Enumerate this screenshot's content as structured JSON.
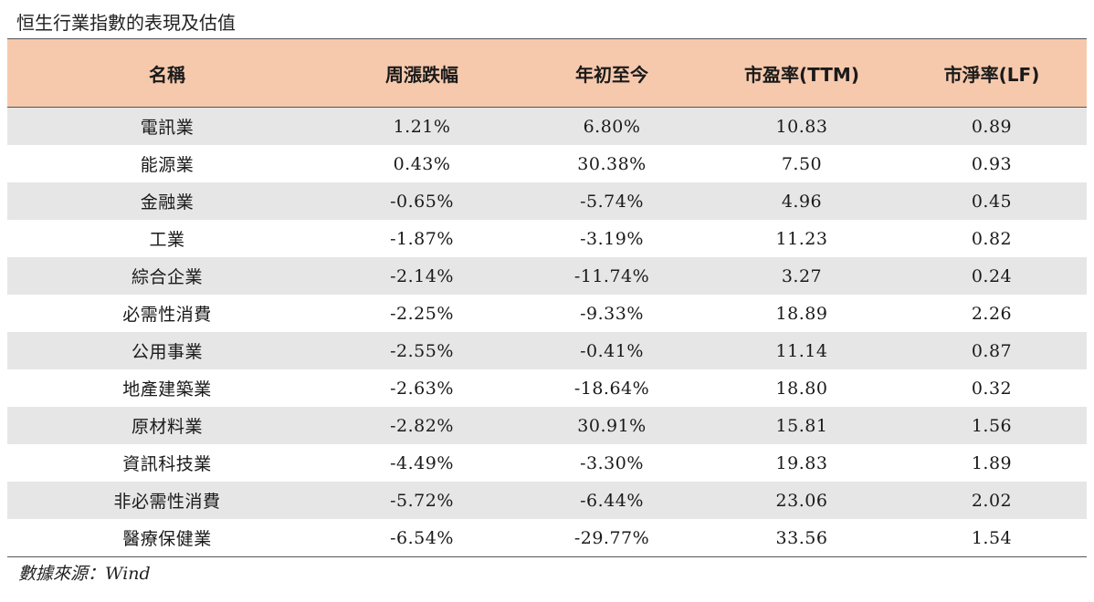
{
  "caption": "恒生行業指數的表現及估值",
  "table": {
    "headers": [
      "名稱",
      "周漲跌幅",
      "年初至今",
      "市盈率(TTM)",
      "市淨率(LF)"
    ],
    "rows": [
      [
        "電訊業",
        "1.21%",
        "6.80%",
        "10.83",
        "0.89"
      ],
      [
        "能源業",
        "0.43%",
        "30.38%",
        "7.50",
        "0.93"
      ],
      [
        "金融業",
        "-0.65%",
        "-5.74%",
        "4.96",
        "0.45"
      ],
      [
        "工業",
        "-1.87%",
        "-3.19%",
        "11.23",
        "0.82"
      ],
      [
        "綜合企業",
        "-2.14%",
        "-11.74%",
        "3.27",
        "0.24"
      ],
      [
        "必需性消費",
        "-2.25%",
        "-9.33%",
        "18.89",
        "2.26"
      ],
      [
        "公用事業",
        "-2.55%",
        "-0.41%",
        "11.14",
        "0.87"
      ],
      [
        "地產建築業",
        "-2.63%",
        "-18.64%",
        "18.80",
        "0.32"
      ],
      [
        "原材料業",
        "-2.82%",
        "30.91%",
        "15.81",
        "1.56"
      ],
      [
        "資訊科技業",
        "-4.49%",
        "-3.30%",
        "19.83",
        "1.89"
      ],
      [
        "非必需性消費",
        "-5.72%",
        "-6.44%",
        "23.06",
        "2.02"
      ],
      [
        "醫療保健業",
        "-6.54%",
        "-29.77%",
        "33.56",
        "1.54"
      ]
    ]
  },
  "source": "數據來源：Wind",
  "colors": {
    "header_bg": "#f6c9ad",
    "stripe_bg": "#e6e6e6"
  }
}
